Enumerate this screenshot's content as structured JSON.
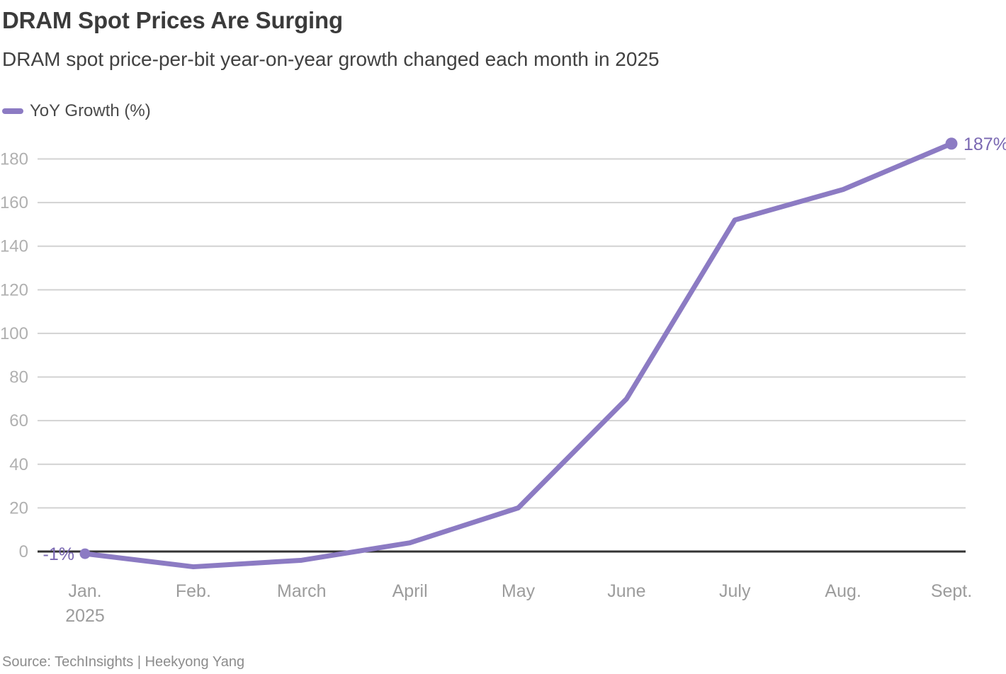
{
  "header": {
    "title": "DRAM Spot Prices Are Surging",
    "subtitle": "DRAM spot price-per-bit year-on-year growth changed each month in 2025"
  },
  "legend": {
    "label": "YoY Growth (%)"
  },
  "chart_data": {
    "type": "line",
    "title": "DRAM Spot Prices Are Surging",
    "subtitle": "DRAM spot price-per-bit year-on-year growth changed each month in 2025",
    "categories": [
      "Jan.",
      "Feb.",
      "March",
      "April",
      "May",
      "June",
      "July",
      "Aug.",
      "Sept."
    ],
    "x_sub_label": "2025",
    "series": [
      {
        "name": "YoY Growth (%)",
        "values": [
          -1,
          -7,
          -4,
          4,
          20,
          70,
          152,
          166,
          187
        ]
      }
    ],
    "y_ticks": [
      0,
      20,
      40,
      60,
      80,
      100,
      120,
      140,
      160,
      180
    ],
    "ylim": [
      -12,
      192
    ],
    "grid": true,
    "legend_position": "top-left",
    "first_point_label": "-1%",
    "last_point_label": "187%",
    "colors": {
      "line": "#8c7bc3",
      "point_label": "#7a68b2",
      "grid": "#d2d2d2",
      "zero_line": "#333333",
      "y_tick_text": "#b0b0b0",
      "x_tick_text": "#9c9c9c"
    }
  },
  "source": {
    "text": "Source: TechInsights | Heekyong Yang"
  }
}
